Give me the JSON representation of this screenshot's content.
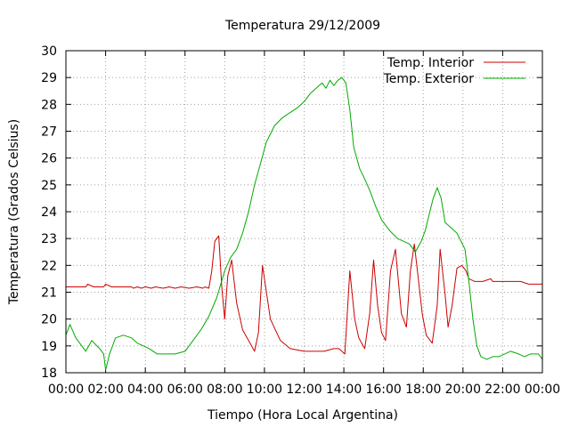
{
  "chart_data": {
    "type": "line",
    "title": "Temperatura 29/12/2009",
    "xlabel": "Tiempo (Hora Local Argentina)",
    "ylabel": "Temperatura (Grados Celsius)",
    "xlim": [
      0,
      24
    ],
    "ylim": [
      18,
      30
    ],
    "grid": true,
    "legend_position": "top-right",
    "x_ticks": [
      {
        "value": 0,
        "label": "00:00"
      },
      {
        "value": 2,
        "label": "02:00"
      },
      {
        "value": 4,
        "label": "04:00"
      },
      {
        "value": 6,
        "label": "06:00"
      },
      {
        "value": 8,
        "label": "08:00"
      },
      {
        "value": 10,
        "label": "10:00"
      },
      {
        "value": 12,
        "label": "12:00"
      },
      {
        "value": 14,
        "label": "14:00"
      },
      {
        "value": 16,
        "label": "16:00"
      },
      {
        "value": 18,
        "label": "18:00"
      },
      {
        "value": 20,
        "label": "20:00"
      },
      {
        "value": 22,
        "label": "22:00"
      },
      {
        "value": 24,
        "label": "00:00"
      }
    ],
    "y_ticks": [
      {
        "value": 18,
        "label": "18"
      },
      {
        "value": 19,
        "label": "19"
      },
      {
        "value": 20,
        "label": "20"
      },
      {
        "value": 21,
        "label": "21"
      },
      {
        "value": 22,
        "label": "22"
      },
      {
        "value": 23,
        "label": "23"
      },
      {
        "value": 24,
        "label": "24"
      },
      {
        "value": 25,
        "label": "25"
      },
      {
        "value": 26,
        "label": "26"
      },
      {
        "value": 27,
        "label": "27"
      },
      {
        "value": 28,
        "label": "28"
      },
      {
        "value": 29,
        "label": "29"
      },
      {
        "value": 30,
        "label": "30"
      }
    ],
    "series": [
      {
        "name": "Temp. Interior",
        "color": "#cc0000",
        "x": [
          0,
          1.0,
          1.1,
          1.4,
          1.9,
          2.0,
          2.3,
          3.3,
          3.4,
          3.6,
          3.8,
          4.0,
          4.3,
          4.5,
          4.9,
          5.2,
          5.5,
          5.8,
          6.2,
          6.6,
          6.9,
          7.0,
          7.2,
          7.35,
          7.5,
          7.7,
          7.85,
          8.0,
          8.15,
          8.35,
          8.6,
          8.9,
          9.2,
          9.5,
          9.7,
          9.9,
          10.3,
          10.8,
          11.3,
          12.0,
          12.5,
          13.0,
          13.5,
          13.75,
          13.9,
          14.05,
          14.3,
          14.55,
          14.75,
          15.05,
          15.3,
          15.5,
          15.7,
          15.9,
          16.1,
          16.35,
          16.6,
          16.9,
          17.15,
          17.35,
          17.55,
          17.75,
          17.95,
          18.15,
          18.45,
          18.7,
          18.85,
          19.1,
          19.25,
          19.45,
          19.7,
          19.95,
          20.15,
          20.3,
          20.6,
          21.0,
          21.4,
          21.5,
          21.8,
          22.5,
          22.9,
          23.3,
          24.0
        ],
        "values": [
          21.2,
          21.2,
          21.3,
          21.2,
          21.2,
          21.3,
          21.2,
          21.2,
          21.15,
          21.2,
          21.15,
          21.2,
          21.15,
          21.2,
          21.15,
          21.2,
          21.15,
          21.2,
          21.15,
          21.2,
          21.15,
          21.2,
          21.15,
          21.8,
          22.9,
          23.1,
          21.2,
          20.0,
          21.6,
          22.2,
          20.6,
          19.6,
          19.2,
          18.8,
          19.5,
          22.0,
          20.0,
          19.2,
          18.9,
          18.8,
          18.8,
          18.8,
          18.9,
          18.9,
          18.8,
          18.7,
          21.8,
          20.0,
          19.3,
          18.9,
          20.2,
          22.2,
          20.5,
          19.5,
          19.2,
          21.8,
          22.6,
          20.2,
          19.7,
          21.8,
          22.8,
          21.5,
          20.2,
          19.4,
          19.1,
          20.5,
          22.6,
          20.9,
          19.7,
          20.5,
          21.9,
          22.0,
          21.8,
          21.5,
          21.4,
          21.4,
          21.5,
          21.4,
          21.4,
          21.4,
          21.4,
          21.3,
          21.3
        ]
      },
      {
        "name": "Temp. Exterior",
        "color": "#00aa00",
        "x": [
          0,
          0.2,
          0.5,
          0.8,
          1.0,
          1.3,
          1.7,
          1.9,
          2.0,
          2.2,
          2.5,
          2.9,
          3.3,
          3.6,
          3.9,
          4.2,
          4.6,
          5.0,
          5.5,
          6.0,
          6.4,
          6.8,
          7.2,
          7.6,
          8.0,
          8.3,
          8.6,
          8.9,
          9.2,
          9.5,
          9.8,
          10.1,
          10.5,
          10.9,
          11.3,
          11.7,
          12.0,
          12.3,
          12.6,
          12.9,
          13.1,
          13.3,
          13.5,
          13.7,
          13.9,
          14.1,
          14.3,
          14.5,
          14.8,
          15.0,
          15.3,
          15.6,
          15.9,
          16.3,
          16.7,
          17.0,
          17.3,
          17.6,
          17.9,
          18.1,
          18.3,
          18.5,
          18.7,
          18.9,
          19.1,
          19.4,
          19.7,
          19.9,
          20.1,
          20.3,
          20.5,
          20.7,
          20.9,
          21.2,
          21.5,
          21.8,
          22.1,
          22.4,
          22.8,
          23.1,
          23.4,
          23.8,
          24.0
        ],
        "values": [
          19.4,
          19.8,
          19.3,
          19.0,
          18.8,
          19.2,
          18.9,
          18.7,
          18.1,
          18.7,
          19.3,
          19.4,
          19.3,
          19.1,
          19.0,
          18.9,
          18.7,
          18.7,
          18.7,
          18.8,
          19.2,
          19.6,
          20.1,
          20.8,
          21.8,
          22.3,
          22.6,
          23.2,
          24.0,
          25.0,
          25.8,
          26.6,
          27.2,
          27.5,
          27.7,
          27.9,
          28.1,
          28.4,
          28.6,
          28.8,
          28.6,
          28.9,
          28.7,
          28.9,
          29.0,
          28.8,
          27.8,
          26.4,
          25.6,
          25.3,
          24.8,
          24.2,
          23.7,
          23.3,
          23.0,
          22.9,
          22.8,
          22.5,
          22.9,
          23.3,
          23.9,
          24.5,
          24.9,
          24.5,
          23.6,
          23.4,
          23.2,
          22.9,
          22.6,
          21.4,
          20.0,
          19.0,
          18.6,
          18.5,
          18.6,
          18.6,
          18.7,
          18.8,
          18.7,
          18.6,
          18.7,
          18.7,
          18.5
        ]
      }
    ]
  }
}
